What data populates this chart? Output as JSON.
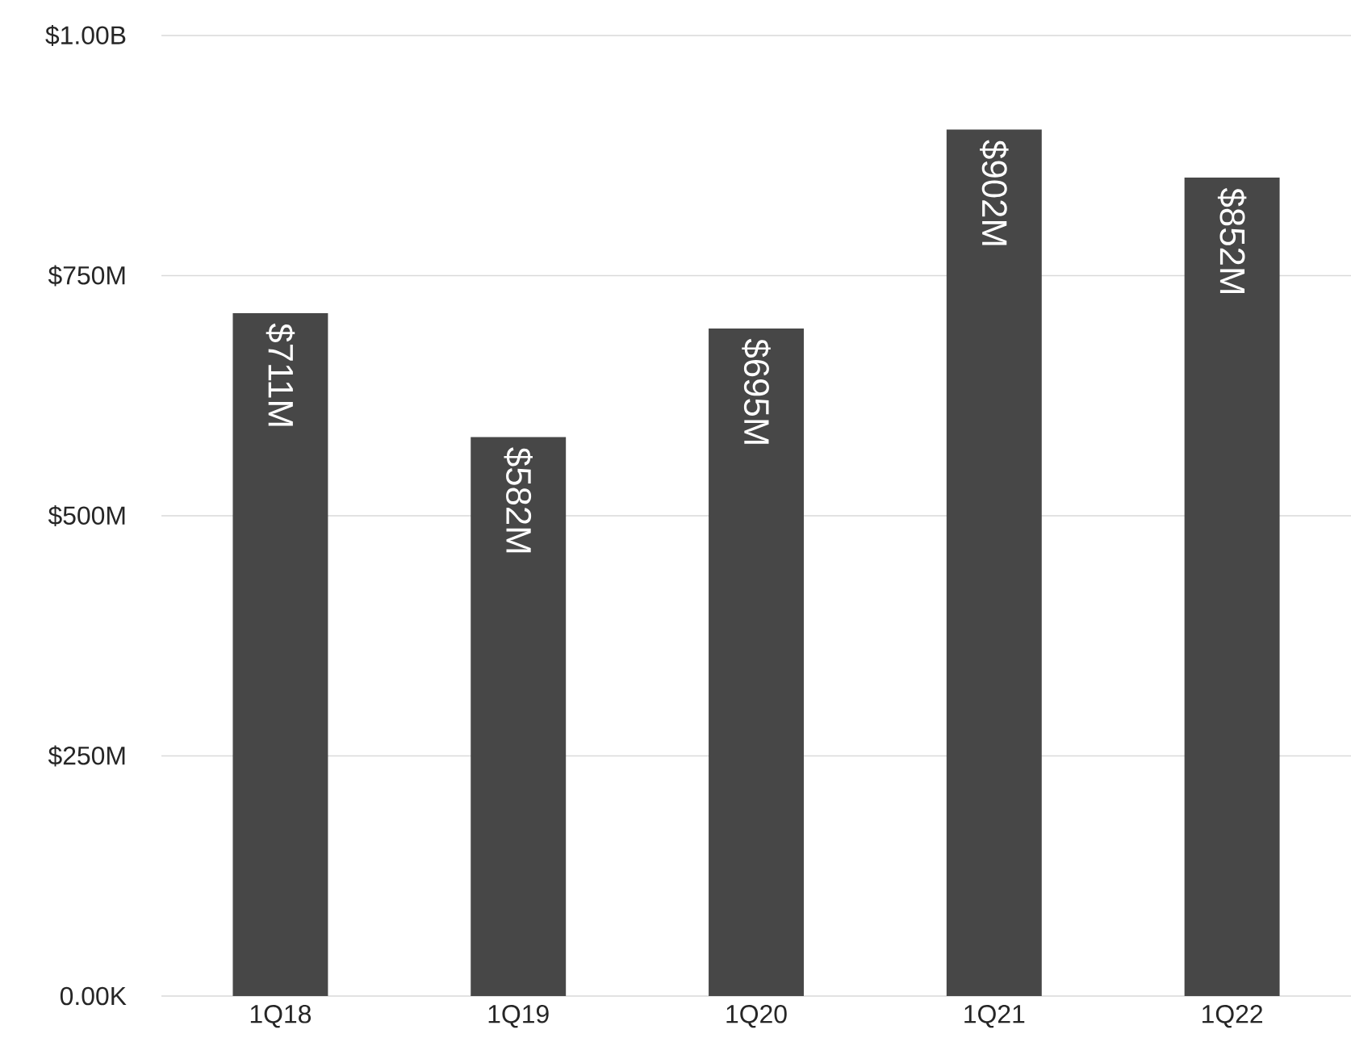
{
  "chart_data": {
    "type": "bar",
    "categories": [
      "1Q18",
      "1Q19",
      "1Q20",
      "1Q21",
      "1Q22"
    ],
    "values": [
      711000000,
      582000000,
      695000000,
      902000000,
      852000000
    ],
    "value_labels": [
      "$711M",
      "$582M",
      "$695M",
      "$902M",
      "$852M"
    ],
    "color": "#474747",
    "ylim": [
      0,
      1000000000
    ],
    "yticks": [
      {
        "value": 0,
        "label": "0.00K"
      },
      {
        "value": 250000000,
        "label": "$250M"
      },
      {
        "value": 500000000,
        "label": "$500M"
      },
      {
        "value": 750000000,
        "label": "$750M"
      },
      {
        "value": 1000000000,
        "label": "$1.00B"
      }
    ],
    "grid": "y"
  }
}
